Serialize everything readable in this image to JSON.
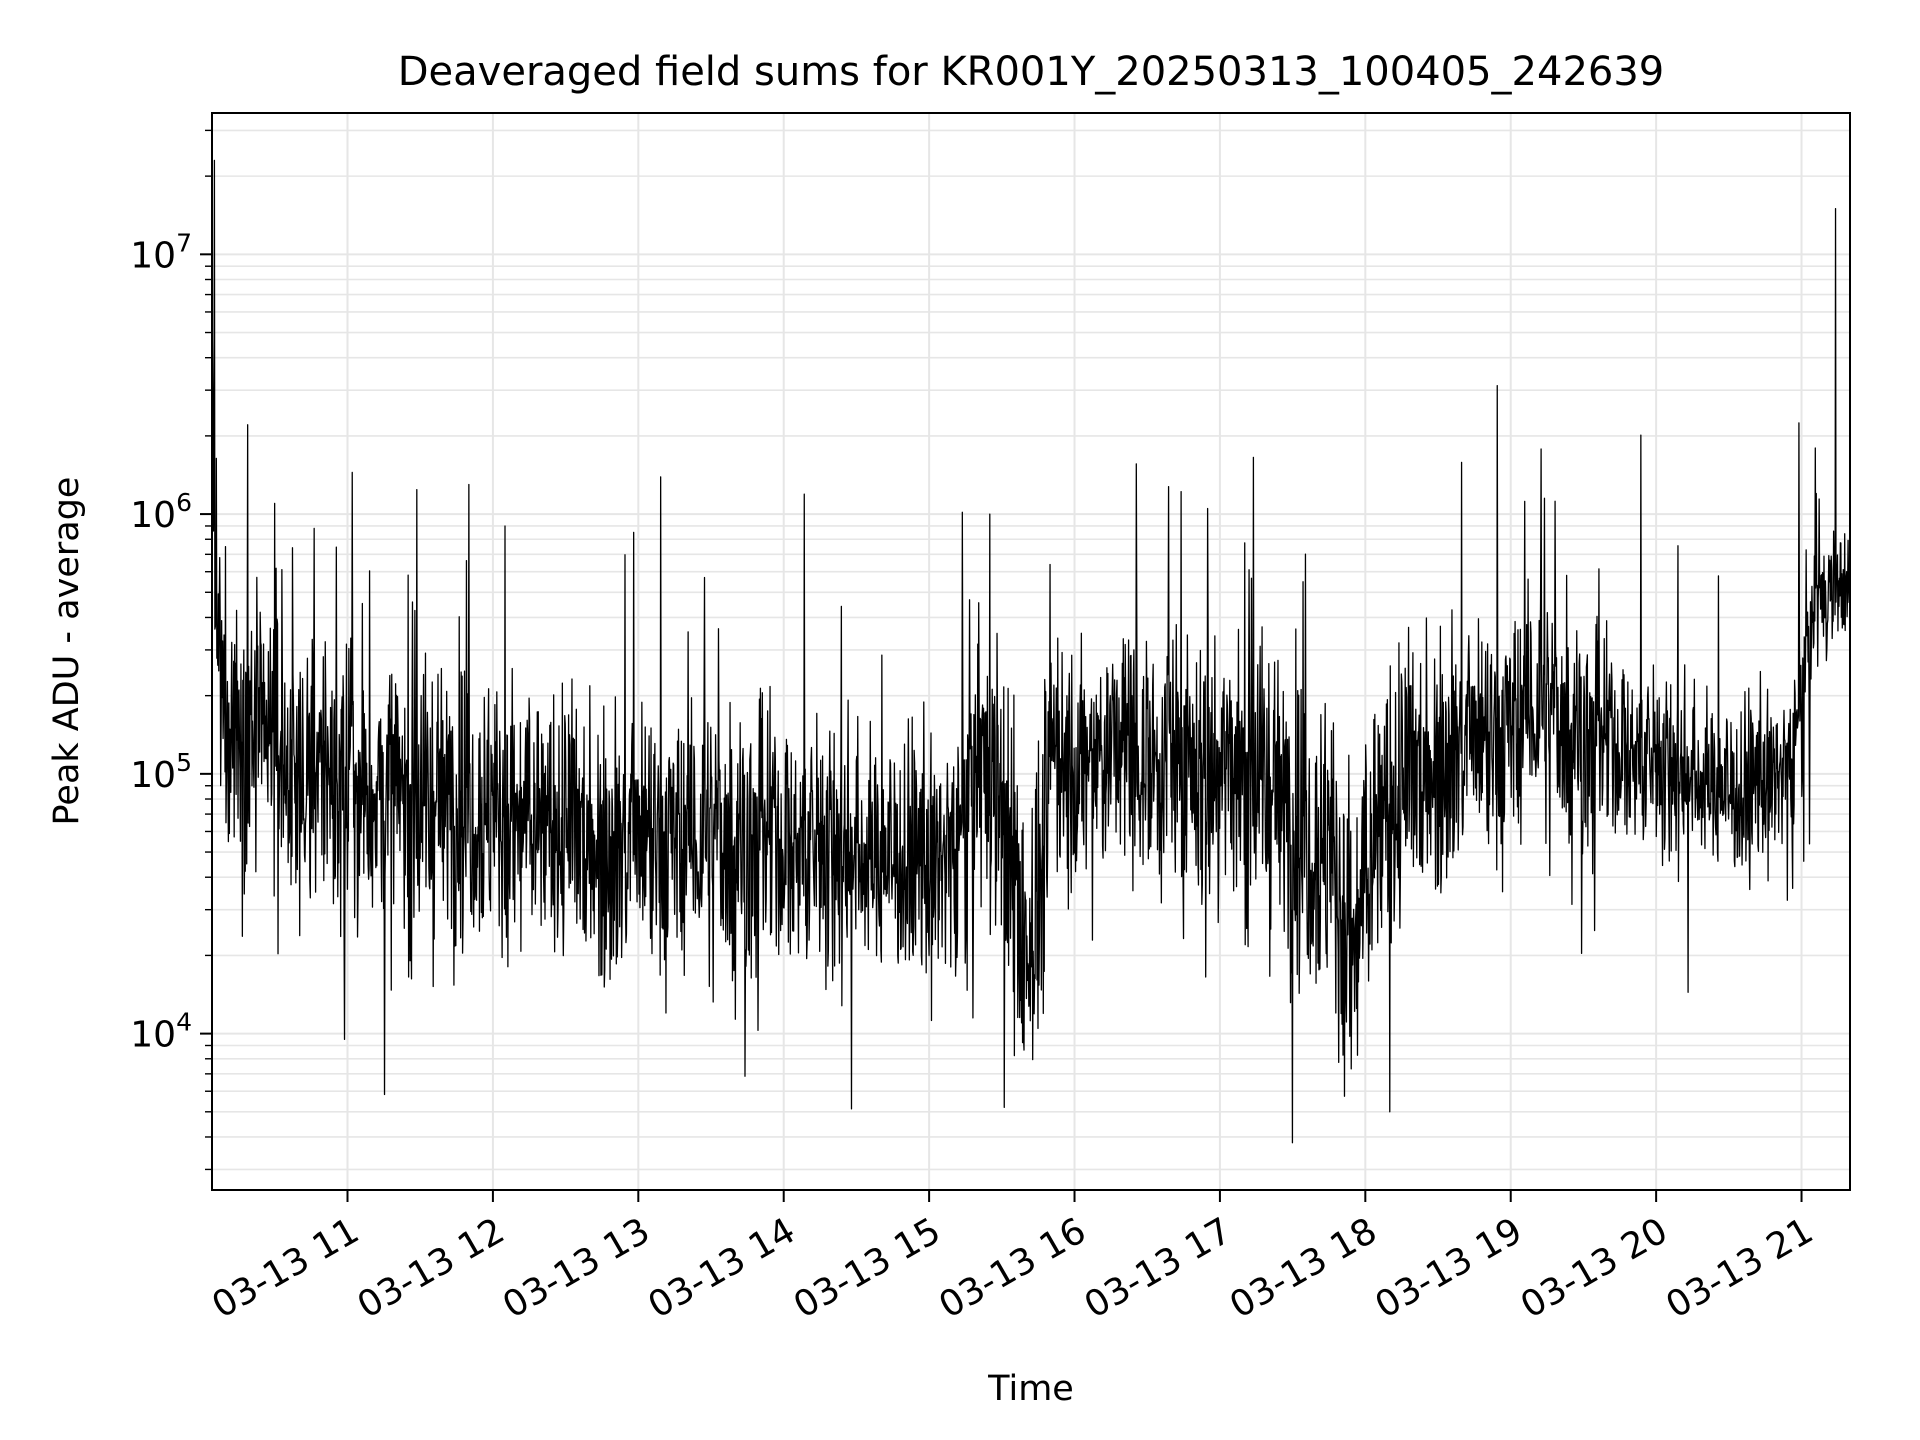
{
  "chart_data": {
    "type": "line",
    "title": "Deaveraged field sums for KR001Y_20250313_100405_242639",
    "xlabel": "Time",
    "ylabel": "Peak ADU - average",
    "yscale": "log",
    "ylim": [
      2500,
      35000000
    ],
    "xlim": [
      "2025-03-13T10:04:05",
      "2025-03-13T21:20:00"
    ],
    "x_ticks": [
      {
        "value": "2025-03-13T11:00:00",
        "label": "03-13 11"
      },
      {
        "value": "2025-03-13T12:00:00",
        "label": "03-13 12"
      },
      {
        "value": "2025-03-13T13:00:00",
        "label": "03-13 13"
      },
      {
        "value": "2025-03-13T14:00:00",
        "label": "03-13 14"
      },
      {
        "value": "2025-03-13T15:00:00",
        "label": "03-13 15"
      },
      {
        "value": "2025-03-13T16:00:00",
        "label": "03-13 16"
      },
      {
        "value": "2025-03-13T17:00:00",
        "label": "03-13 17"
      },
      {
        "value": "2025-03-13T18:00:00",
        "label": "03-13 18"
      },
      {
        "value": "2025-03-13T19:00:00",
        "label": "03-13 19"
      },
      {
        "value": "2025-03-13T20:00:00",
        "label": "03-13 20"
      },
      {
        "value": "2025-03-13T21:00:00",
        "label": "03-13 21"
      }
    ],
    "y_ticks": [
      {
        "value": 10000,
        "base": "10",
        "exp": "4"
      },
      {
        "value": 100000,
        "base": "10",
        "exp": "5"
      },
      {
        "value": 1000000,
        "base": "10",
        "exp": "6"
      },
      {
        "value": 10000000,
        "base": "10",
        "exp": "7"
      }
    ],
    "grid": true,
    "grid_color": "#e6e6e6",
    "line_color": "#000000",
    "series": [
      {
        "x": [
          "2025-03-13T10:04:05",
          "2025-03-13T10:05:00",
          "2025-03-13T10:06:00",
          "2025-03-13T10:08:00",
          "2025-03-13T10:12:00",
          "2025-03-13T10:20:00",
          "2025-03-13T10:30:00",
          "2025-03-13T10:38:00",
          "2025-03-13T10:45:00",
          "2025-03-13T10:52:00",
          "2025-03-13T11:00:00",
          "2025-03-13T11:10:00",
          "2025-03-13T11:20:00",
          "2025-03-13T11:30:00",
          "2025-03-13T11:38:00",
          "2025-03-13T11:47:00",
          "2025-03-13T12:00:00",
          "2025-03-13T12:12:00",
          "2025-03-13T12:22:00",
          "2025-03-13T12:35:00",
          "2025-03-13T12:50:00",
          "2025-03-13T13:00:00",
          "2025-03-13T13:15:00",
          "2025-03-13T13:30:00",
          "2025-03-13T13:50:00",
          "2025-03-13T14:10:00",
          "2025-03-13T14:30:00",
          "2025-03-13T14:50:00",
          "2025-03-13T15:00:00",
          "2025-03-13T15:10:00",
          "2025-03-13T15:20:00",
          "2025-03-13T15:30:00",
          "2025-03-13T15:38:00",
          "2025-03-13T15:45:00",
          "2025-03-13T15:52:00",
          "2025-03-13T16:00:00",
          "2025-03-13T16:15:00",
          "2025-03-13T16:35:00",
          "2025-03-13T16:50:00",
          "2025-03-13T17:00:00",
          "2025-03-13T17:15:00",
          "2025-03-13T17:30:00",
          "2025-03-13T17:45:00",
          "2025-03-13T17:55:00",
          "2025-03-13T18:05:00",
          "2025-03-13T18:20:00",
          "2025-03-13T18:35:00",
          "2025-03-13T18:50:00",
          "2025-03-13T19:00:00",
          "2025-03-13T19:10:00",
          "2025-03-13T19:20:00",
          "2025-03-13T19:40:00",
          "2025-03-13T20:00:00",
          "2025-03-13T20:20:00",
          "2025-03-13T20:35:00",
          "2025-03-13T20:45:00",
          "2025-03-13T20:55:00",
          "2025-03-13T21:00:00",
          "2025-03-13T21:05:00",
          "2025-03-13T21:10:00",
          "2025-03-13T21:15:00",
          "2025-03-13T21:20:00"
        ],
        "y": [
          6500000,
          600000,
          250000,
          200000,
          170000,
          150000,
          120000,
          110000,
          100000,
          95000,
          90000,
          85000,
          80000,
          75000,
          78000,
          85000,
          70000,
          65000,
          62000,
          60000,
          55000,
          50000,
          52000,
          55000,
          55000,
          52000,
          50000,
          48000,
          40000,
          55000,
          100000,
          90000,
          20000,
          30000,
          150000,
          90000,
          130000,
          120000,
          100000,
          110000,
          100000,
          70000,
          50000,
          20000,
          60000,
          100000,
          130000,
          120000,
          140000,
          180000,
          160000,
          130000,
          110000,
          95000,
          85000,
          90000,
          110000,
          200000,
          400000,
          500000,
          550000,
          500000
        ]
      }
    ],
    "noise_spread": [
      0.3,
      0.6,
      0.7,
      0.8,
      0.8,
      0.8,
      0.8,
      0.8,
      0.8,
      0.8,
      0.8,
      0.8,
      0.8,
      0.8,
      0.8,
      0.8,
      0.75,
      0.75,
      0.75,
      0.75,
      0.75,
      0.75,
      0.7,
      0.7,
      0.7,
      0.7,
      0.7,
      0.7,
      0.75,
      0.75,
      0.75,
      0.85,
      0.85,
      0.85,
      0.75,
      0.7,
      0.7,
      0.7,
      0.75,
      0.8,
      0.8,
      0.85,
      0.9,
      0.9,
      0.85,
      0.75,
      0.7,
      0.65,
      0.65,
      0.65,
      0.6,
      0.55,
      0.5,
      0.5,
      0.5,
      0.5,
      0.5,
      0.5,
      0.35,
      0.3,
      0.3,
      0.3
    ],
    "spikes": [
      {
        "x": "2025-03-13T10:05:00",
        "y": 23000000
      },
      {
        "x": "2025-03-13T10:30:00",
        "y": 1100000
      },
      {
        "x": "2025-03-13T11:50:00",
        "y": 1300000
      },
      {
        "x": "2025-03-13T12:05:00",
        "y": 900000
      },
      {
        "x": "2025-03-13T12:58:00",
        "y": 850000
      },
      {
        "x": "2025-03-13T15:25:00",
        "y": 1000000
      },
      {
        "x": "2025-03-13T16:55:00",
        "y": 1050000
      },
      {
        "x": "2025-03-13T19:14:00",
        "y": 1150000
      },
      {
        "x": "2025-03-13T21:06:00",
        "y": 1200000
      },
      {
        "x": "2025-03-13T21:14:00",
        "y": 15000000
      },
      {
        "x": "2025-03-13T17:30:00",
        "y": 3800
      },
      {
        "x": "2025-03-13T15:31:00",
        "y": 5200
      },
      {
        "x": "2025-03-13T18:10:00",
        "y": 5000
      }
    ]
  }
}
